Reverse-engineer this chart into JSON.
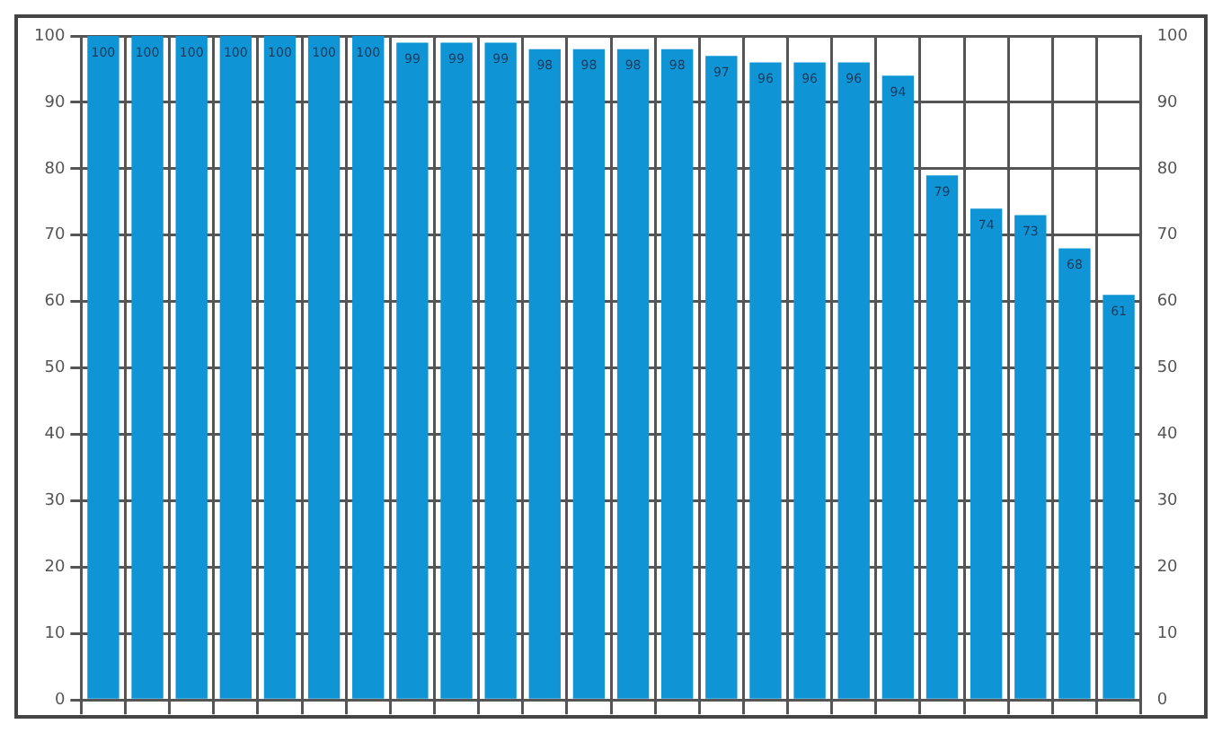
{
  "chart_data": {
    "type": "bar",
    "categories": [
      null,
      null,
      null,
      null,
      null,
      null,
      null,
      null,
      null,
      null,
      null,
      null,
      null,
      null,
      null,
      null,
      null,
      null,
      null,
      null,
      null,
      null,
      null,
      null
    ],
    "values": [
      100,
      100,
      100,
      100,
      100,
      100,
      100,
      99,
      99,
      99,
      98,
      98,
      98,
      98,
      97,
      96,
      96,
      96,
      94,
      79,
      74,
      73,
      68,
      61
    ],
    "color": "#0f95d6",
    "ylim": [
      0,
      100
    ],
    "yticks": [
      0,
      10,
      20,
      30,
      40,
      50,
      60,
      70,
      80,
      90,
      100
    ],
    "y2lim": [
      0,
      100
    ],
    "y2ticks": [
      0,
      10,
      20,
      30,
      40,
      50,
      60,
      70,
      80,
      90,
      100
    ],
    "grid": true,
    "tick_labels": "y",
    "data_labels": true
  }
}
